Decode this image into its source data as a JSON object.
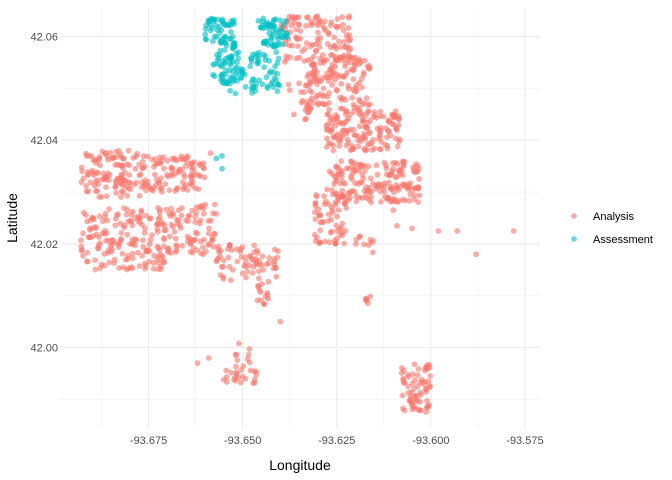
{
  "chart_data": {
    "type": "scatter",
    "title": "",
    "xlabel": "Longitude",
    "ylabel": "Latitude",
    "xlim": [
      -93.698,
      -93.571
    ],
    "ylim": [
      41.9845,
      42.0655
    ],
    "x_ticks": [
      -93.675,
      -93.65,
      -93.625,
      -93.6,
      -93.575
    ],
    "x_tick_labels": [
      "-93.675",
      "-93.650",
      "-93.625",
      "-93.600",
      "-93.575"
    ],
    "y_ticks": [
      42.0,
      42.02,
      42.04,
      42.06
    ],
    "y_tick_labels": [
      "42.00",
      "42.02",
      "42.04",
      "42.06"
    ],
    "grid": true,
    "legend_position": "right",
    "point_alpha": 0.6,
    "series": [
      {
        "name": "Analysis",
        "color": "#F8766D",
        "clusters": [
          {
            "x": [
              -93.693,
              -93.677
            ],
            "y": [
              42.029,
              42.038
            ],
            "n": 110
          },
          {
            "x": [
              -93.677,
              -93.66
            ],
            "y": [
              42.03,
              42.037
            ],
            "n": 100
          },
          {
            "x": [
              -93.693,
              -93.67
            ],
            "y": [
              42.015,
              42.027
            ],
            "n": 170
          },
          {
            "x": [
              -93.67,
              -93.657
            ],
            "y": [
              42.018,
              42.028
            ],
            "n": 80
          },
          {
            "x": [
              -93.657,
              -93.64
            ],
            "y": [
              42.013,
              42.02
            ],
            "n": 70
          },
          {
            "x": [
              -93.647,
              -93.643
            ],
            "y": [
              42.008,
              42.013
            ],
            "n": 14
          },
          {
            "x": [
              -93.656,
              -93.646
            ],
            "y": [
              41.993,
              41.996
            ],
            "n": 22
          },
          {
            "x": [
              -93.652,
              -93.648
            ],
            "y": [
              41.996,
              42.001
            ],
            "n": 10
          },
          {
            "x": [
              -93.631,
              -93.622
            ],
            "y": [
              42.02,
              42.03
            ],
            "n": 60
          },
          {
            "x": [
              -93.628,
              -93.603
            ],
            "y": [
              42.028,
              42.036
            ],
            "n": 180
          },
          {
            "x": [
              -93.628,
              -93.608
            ],
            "y": [
              42.038,
              42.046
            ],
            "n": 150
          },
          {
            "x": [
              -93.633,
              -93.616
            ],
            "y": [
              42.046,
              42.056
            ],
            "n": 130
          },
          {
            "x": [
              -93.64,
              -93.621
            ],
            "y": [
              42.055,
              42.064
            ],
            "n": 120
          },
          {
            "x": [
              -93.638,
              -93.632
            ],
            "y": [
              42.043,
              42.052
            ],
            "n": 20
          },
          {
            "x": [
              -93.608,
              -93.6
            ],
            "y": [
              41.987,
              41.997
            ],
            "n": 70
          },
          {
            "x": [
              -93.618,
              -93.616
            ],
            "y": [
              42.0085,
              42.01
            ],
            "n": 6
          },
          {
            "x": [
              -93.62,
              -93.615
            ],
            "y": [
              42.018,
              42.022
            ],
            "n": 10
          }
        ],
        "points": [
          [
            -93.605,
            42.023
          ],
          [
            -93.598,
            42.0225
          ],
          [
            -93.593,
            42.0225
          ],
          [
            -93.588,
            42.018
          ],
          [
            -93.578,
            42.0225
          ],
          [
            -93.609,
            42.0235
          ],
          [
            -93.662,
            41.997
          ],
          [
            -93.659,
            41.998
          ],
          [
            -93.64,
            42.005
          ],
          [
            -93.606,
            42.031
          ],
          [
            -93.61,
            42.0265
          ],
          [
            -93.6585,
            42.0375
          ]
        ]
      },
      {
        "name": "Assessment",
        "color": "#00BFC4",
        "clusters": [
          {
            "x": [
              -93.66,
              -93.652
            ],
            "y": [
              42.058,
              42.0635
            ],
            "n": 60
          },
          {
            "x": [
              -93.658,
              -93.65
            ],
            "y": [
              42.052,
              42.058
            ],
            "n": 45
          },
          {
            "x": [
              -93.656,
              -93.649
            ],
            "y": [
              42.049,
              42.054
            ],
            "n": 25
          },
          {
            "x": [
              -93.646,
              -93.638
            ],
            "y": [
              42.058,
              42.0635
            ],
            "n": 60
          },
          {
            "x": [
              -93.648,
              -93.64
            ],
            "y": [
              42.049,
              42.057
            ],
            "n": 50
          }
        ],
        "points": [
          [
            -93.6555,
            42.037
          ],
          [
            -93.657,
            42.0365
          ],
          [
            -93.6555,
            42.0345
          ]
        ]
      }
    ]
  }
}
